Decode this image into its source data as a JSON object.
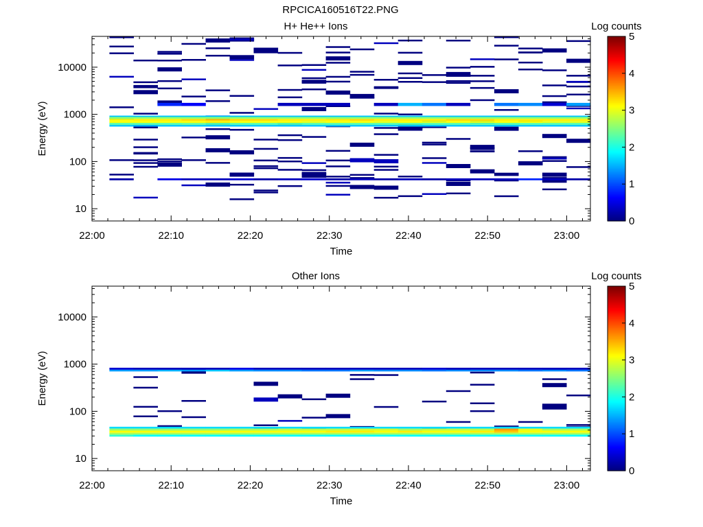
{
  "figure_title": "RPCICA160516T22.PNG",
  "chart_data": [
    {
      "type": "heatmap",
      "title": "H+ He++ Ions",
      "xlabel": "Time",
      "ylabel": "Energy (eV)",
      "colorbar_label": "Log counts",
      "x_ticks": [
        "22:00",
        "22:10",
        "22:20",
        "22:30",
        "22:40",
        "22:50",
        "23:00"
      ],
      "y_ticks": [
        "10",
        "100",
        "1000",
        "10000"
      ],
      "y_scale": "log",
      "y_range_eV": [
        5.5,
        45000
      ],
      "x_range": [
        "22:00",
        "23:03"
      ],
      "colorbar_ticks": [
        "0",
        "1",
        "2",
        "3",
        "4",
        "5"
      ],
      "colorbar_range": [
        0,
        5
      ],
      "bands": [
        {
          "e_lo": 880,
          "e_hi": 940,
          "log_counts": [
            1.6,
            1.6,
            1.6,
            1.6,
            1.6,
            1.6,
            1.6,
            1.6,
            1.6,
            1.6,
            1.6,
            1.6,
            1.6,
            1.6,
            1.6,
            1.6,
            1.6,
            1.6,
            1.6,
            1.6
          ]
        },
        {
          "e_lo": 800,
          "e_hi": 880,
          "log_counts": [
            2.6,
            2.6,
            2.6,
            2.6,
            2.6,
            2.6,
            2.6,
            2.6,
            2.6,
            2.6,
            2.6,
            2.6,
            2.6,
            2.6,
            2.6,
            2.6,
            2.6,
            2.6,
            2.6,
            2.6
          ]
        },
        {
          "e_lo": 730,
          "e_hi": 800,
          "log_counts": [
            3.1,
            3.2,
            3.2,
            3.3,
            3.4,
            3.3,
            3.3,
            3.2,
            3.2,
            3.2,
            3.3,
            3.2,
            3.2,
            3.2,
            3.3,
            3.3,
            3.2,
            3.2,
            3.2,
            3.2
          ]
        },
        {
          "e_lo": 660,
          "e_hi": 730,
          "log_counts": [
            3.1,
            3.1,
            3.1,
            3.1,
            3.2,
            3.1,
            3.1,
            3.1,
            3.0,
            3.1,
            3.1,
            3.0,
            3.1,
            3.0,
            3.1,
            3.0,
            3.1,
            3.1,
            3.0,
            3.0
          ]
        },
        {
          "e_lo": 600,
          "e_hi": 660,
          "log_counts": [
            2.3,
            2.3,
            2.3,
            2.4,
            2.3,
            2.3,
            2.3,
            2.3,
            2.3,
            2.3,
            2.3,
            2.3,
            2.3,
            2.3,
            2.3,
            2.3,
            2.3,
            2.3,
            2.3,
            2.3
          ]
        },
        {
          "e_lo": 550,
          "e_hi": 600,
          "log_counts": [
            1.6,
            1.5,
            1.6,
            1.6,
            1.6,
            1.6,
            1.6,
            1.6,
            1.6,
            1.6,
            1.6,
            1.6,
            1.6,
            1.6,
            1.6,
            1.6,
            1.6,
            1.6,
            1.6,
            1.6
          ]
        },
        {
          "e_lo": 1500,
          "e_hi": 1750,
          "log_counts": [
            0,
            0,
            0.8,
            0.6,
            0,
            0,
            0,
            0.3,
            0.3,
            0.3,
            0,
            0.3,
            1.5,
            1.2,
            0.3,
            0,
            1.2,
            1.3,
            0.4,
            1.4
          ]
        },
        {
          "e_lo": 40,
          "e_hi": 44,
          "log_counts": [
            0.2,
            0,
            0.5,
            0.3,
            0.3,
            0.4,
            0.2,
            0.3,
            0.4,
            0.2,
            0.3,
            0.2,
            0.3,
            0.2,
            0.3,
            0.3,
            0.3,
            0.8,
            0.3,
            0.2
          ]
        }
      ],
      "sparse_counts_log": 0
    },
    {
      "type": "heatmap",
      "title": "Other Ions",
      "xlabel": "Time",
      "ylabel": "Energy (eV)",
      "colorbar_label": "Log counts",
      "x_ticks": [
        "22:00",
        "22:10",
        "22:20",
        "22:30",
        "22:40",
        "22:50",
        "23:00"
      ],
      "y_ticks": [
        "10",
        "100",
        "1000",
        "10000"
      ],
      "y_scale": "log",
      "y_range_eV": [
        5.5,
        45000
      ],
      "x_range": [
        "22:00",
        "23:03"
      ],
      "colorbar_ticks": [
        "0",
        "1",
        "2",
        "3",
        "4",
        "5"
      ],
      "colorbar_range": [
        0,
        5
      ],
      "bands": [
        {
          "e_lo": 760,
          "e_hi": 840,
          "log_counts": [
            0.4,
            0.3,
            0.3,
            0.3,
            0.3,
            0.5,
            0.3,
            0.3,
            0.3,
            0.3,
            0.3,
            0.3,
            0.3,
            0.4,
            0.3,
            0.3,
            0.3,
            0.3,
            0.3,
            0.3
          ]
        },
        {
          "e_lo": 700,
          "e_hi": 760,
          "log_counts": [
            1.4,
            1.4,
            1.5,
            1.4,
            1.6,
            1.4,
            1.3,
            1.3,
            1.2,
            1.2,
            1.4,
            1.3,
            1.3,
            1.2,
            1.3,
            1.3,
            1.3,
            1.2,
            1.3,
            1.2
          ]
        },
        {
          "e_lo": 43,
          "e_hi": 47,
          "log_counts": [
            1.7,
            1.7,
            1.7,
            1.7,
            1.7,
            1.7,
            1.7,
            1.7,
            1.7,
            1.7,
            1.7,
            1.7,
            1.7,
            1.7,
            1.7,
            1.7,
            1.7,
            1.7,
            1.7,
            1.7
          ]
        },
        {
          "e_lo": 39,
          "e_hi": 43,
          "log_counts": [
            2.6,
            2.6,
            2.6,
            2.6,
            2.6,
            2.7,
            2.7,
            2.8,
            2.8,
            2.8,
            2.9,
            2.9,
            2.7,
            2.8,
            2.8,
            2.8,
            3.6,
            3.0,
            2.7,
            2.7
          ]
        },
        {
          "e_lo": 35,
          "e_hi": 39,
          "log_counts": [
            3.1,
            3.1,
            3.1,
            3.1,
            3.1,
            3.1,
            3.1,
            3.1,
            3.1,
            3.2,
            3.2,
            3.1,
            3.2,
            3.1,
            3.1,
            3.2,
            3.4,
            3.1,
            3.1,
            3.1
          ]
        },
        {
          "e_lo": 32,
          "e_hi": 35,
          "log_counts": [
            2.7,
            2.7,
            2.7,
            2.7,
            2.7,
            2.7,
            2.7,
            2.7,
            2.7,
            2.7,
            2.7,
            2.7,
            2.7,
            2.7,
            2.7,
            2.7,
            2.7,
            2.7,
            2.7,
            2.7
          ]
        },
        {
          "e_lo": 29,
          "e_hi": 32,
          "log_counts": [
            2.1,
            1.9,
            1.9,
            1.9,
            1.9,
            1.9,
            1.9,
            1.9,
            1.9,
            1.9,
            1.9,
            1.9,
            1.9,
            1.9,
            1.9,
            1.9,
            1.9,
            1.9,
            1.9,
            1.9
          ]
        }
      ],
      "sparse_counts_log": 0
    }
  ]
}
